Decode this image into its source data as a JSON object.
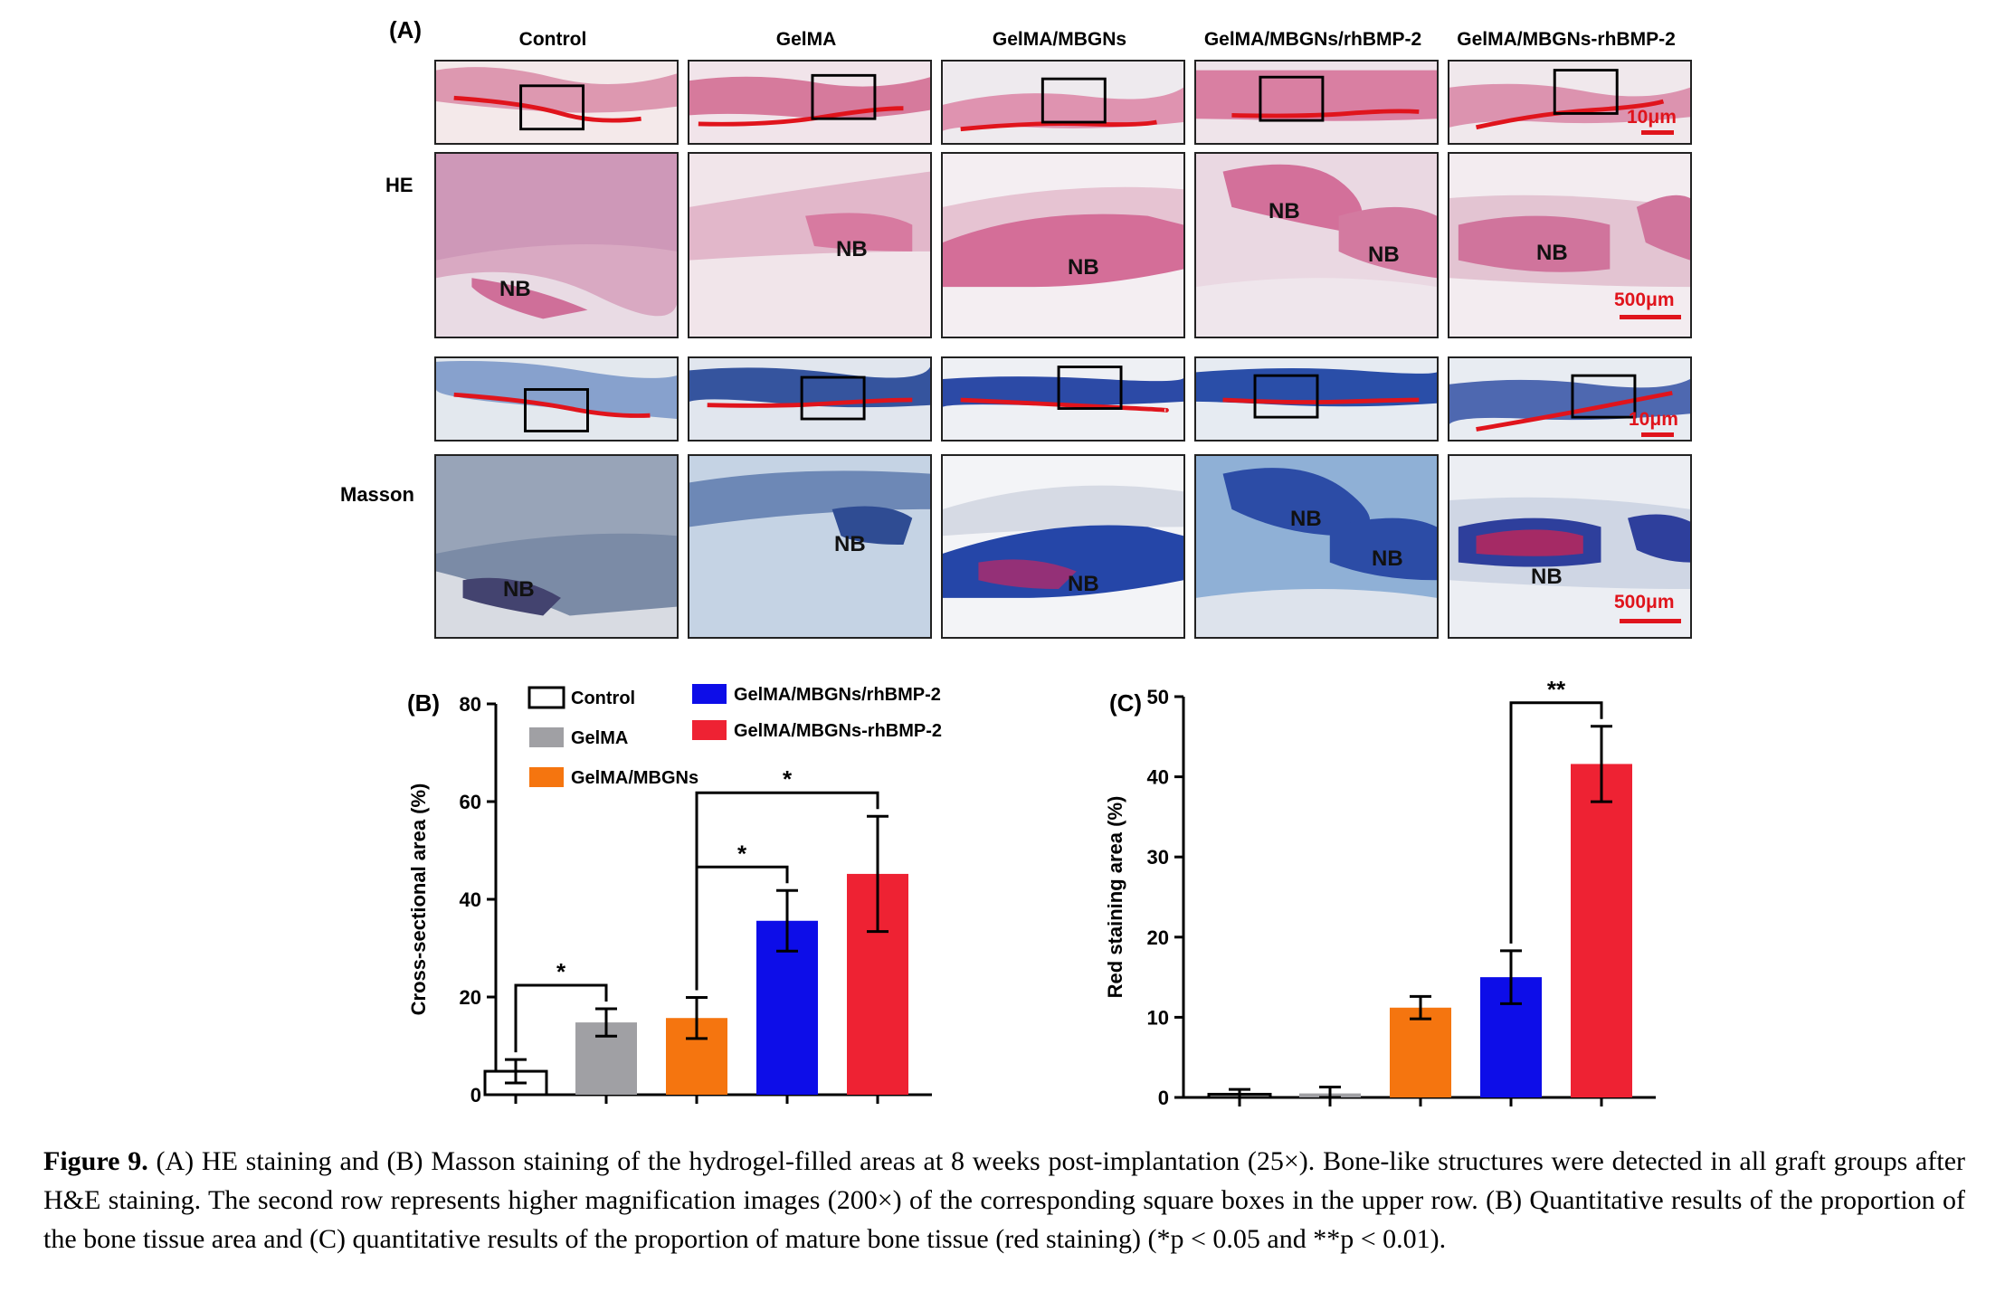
{
  "panel_a": {
    "letter": "(A)",
    "columns": [
      "Control",
      "GelMA",
      "GelMA/MBGNs",
      "GelMA/MBGNs/rhBMP-2",
      "GelMA/MBGNs-rhBMP-2"
    ],
    "row_labels": {
      "he": "HE",
      "masson": "Masson"
    },
    "nb_label": "NB",
    "scale_small": "10μm",
    "scale_large": "500μm",
    "stain_colors": {
      "he_pink": "#d9789c",
      "he_bg": "#f2dfe6",
      "masson_blue": "#2a4fa0",
      "masson_bg": "#dfe6ee",
      "outline_red": "#e0141c"
    }
  },
  "chart_data": [
    {
      "type": "bar",
      "panel": "(B)",
      "ylabel": "Cross-sectional area (%)",
      "ylim": [
        0,
        80
      ],
      "yticks": [
        "0",
        "20",
        "40",
        "60",
        "80"
      ],
      "categories": [
        "Control",
        "GelMA",
        "GelMA/MBGNs",
        "GelMA/MBGNs/rhBMP-2",
        "GelMA/MBGNs-rhBMP-2"
      ],
      "values": [
        4.8,
        14.8,
        15.7,
        35.6,
        45.2
      ],
      "errors": [
        2.4,
        2.8,
        4.2,
        6.2,
        11.8
      ],
      "colors": [
        "#ffffff",
        "#a0a0a4",
        "#f5750f",
        "#0d0de8",
        "#ee2233"
      ],
      "legend": [
        "Control",
        "GelMA",
        "GelMA/MBGNs",
        "GelMA/MBGNs/rhBMP-2",
        "GelMA/MBGNs-rhBMP-2"
      ],
      "significance": [
        {
          "from": 0,
          "to": 1,
          "label": "*"
        },
        {
          "from": 2,
          "to": 3,
          "label": "*"
        },
        {
          "from": 2,
          "to": 4,
          "label": "*"
        }
      ]
    },
    {
      "type": "bar",
      "panel": "(C)",
      "ylabel": "Red staining area (%)",
      "ylim": [
        0,
        50
      ],
      "yticks": [
        "0",
        "10",
        "20",
        "30",
        "40",
        "50"
      ],
      "categories": [
        "Control",
        "GelMA",
        "GelMA/MBGNs",
        "GelMA/MBGNs/rhBMP-2",
        "GelMA/MBGNs-rhBMP-2"
      ],
      "values": [
        0.4,
        0.5,
        11.2,
        15.0,
        41.6
      ],
      "errors": [
        0.6,
        0.8,
        1.4,
        3.3,
        4.7
      ],
      "colors": [
        "#ffffff",
        "#a0a0a4",
        "#f5750f",
        "#0d0de8",
        "#ee2233"
      ],
      "significance": [
        {
          "from": 3,
          "to": 4,
          "label": "**"
        }
      ]
    }
  ],
  "caption": {
    "label": "Figure 9.",
    "text": " (A) HE staining and (B) Masson staining of the hydrogel-filled areas at 8 weeks post-implantation (25×). Bone-like structures were detected in all graft groups after H&E staining. The second row represents higher magnification images (200×) of the corresponding square boxes in the upper row. (B) Quantitative results of the proportion of the bone tissue area and (C) quantitative results of the proportion of mature bone tissue (red staining) (*p < 0.05 and **p < 0.01)."
  }
}
